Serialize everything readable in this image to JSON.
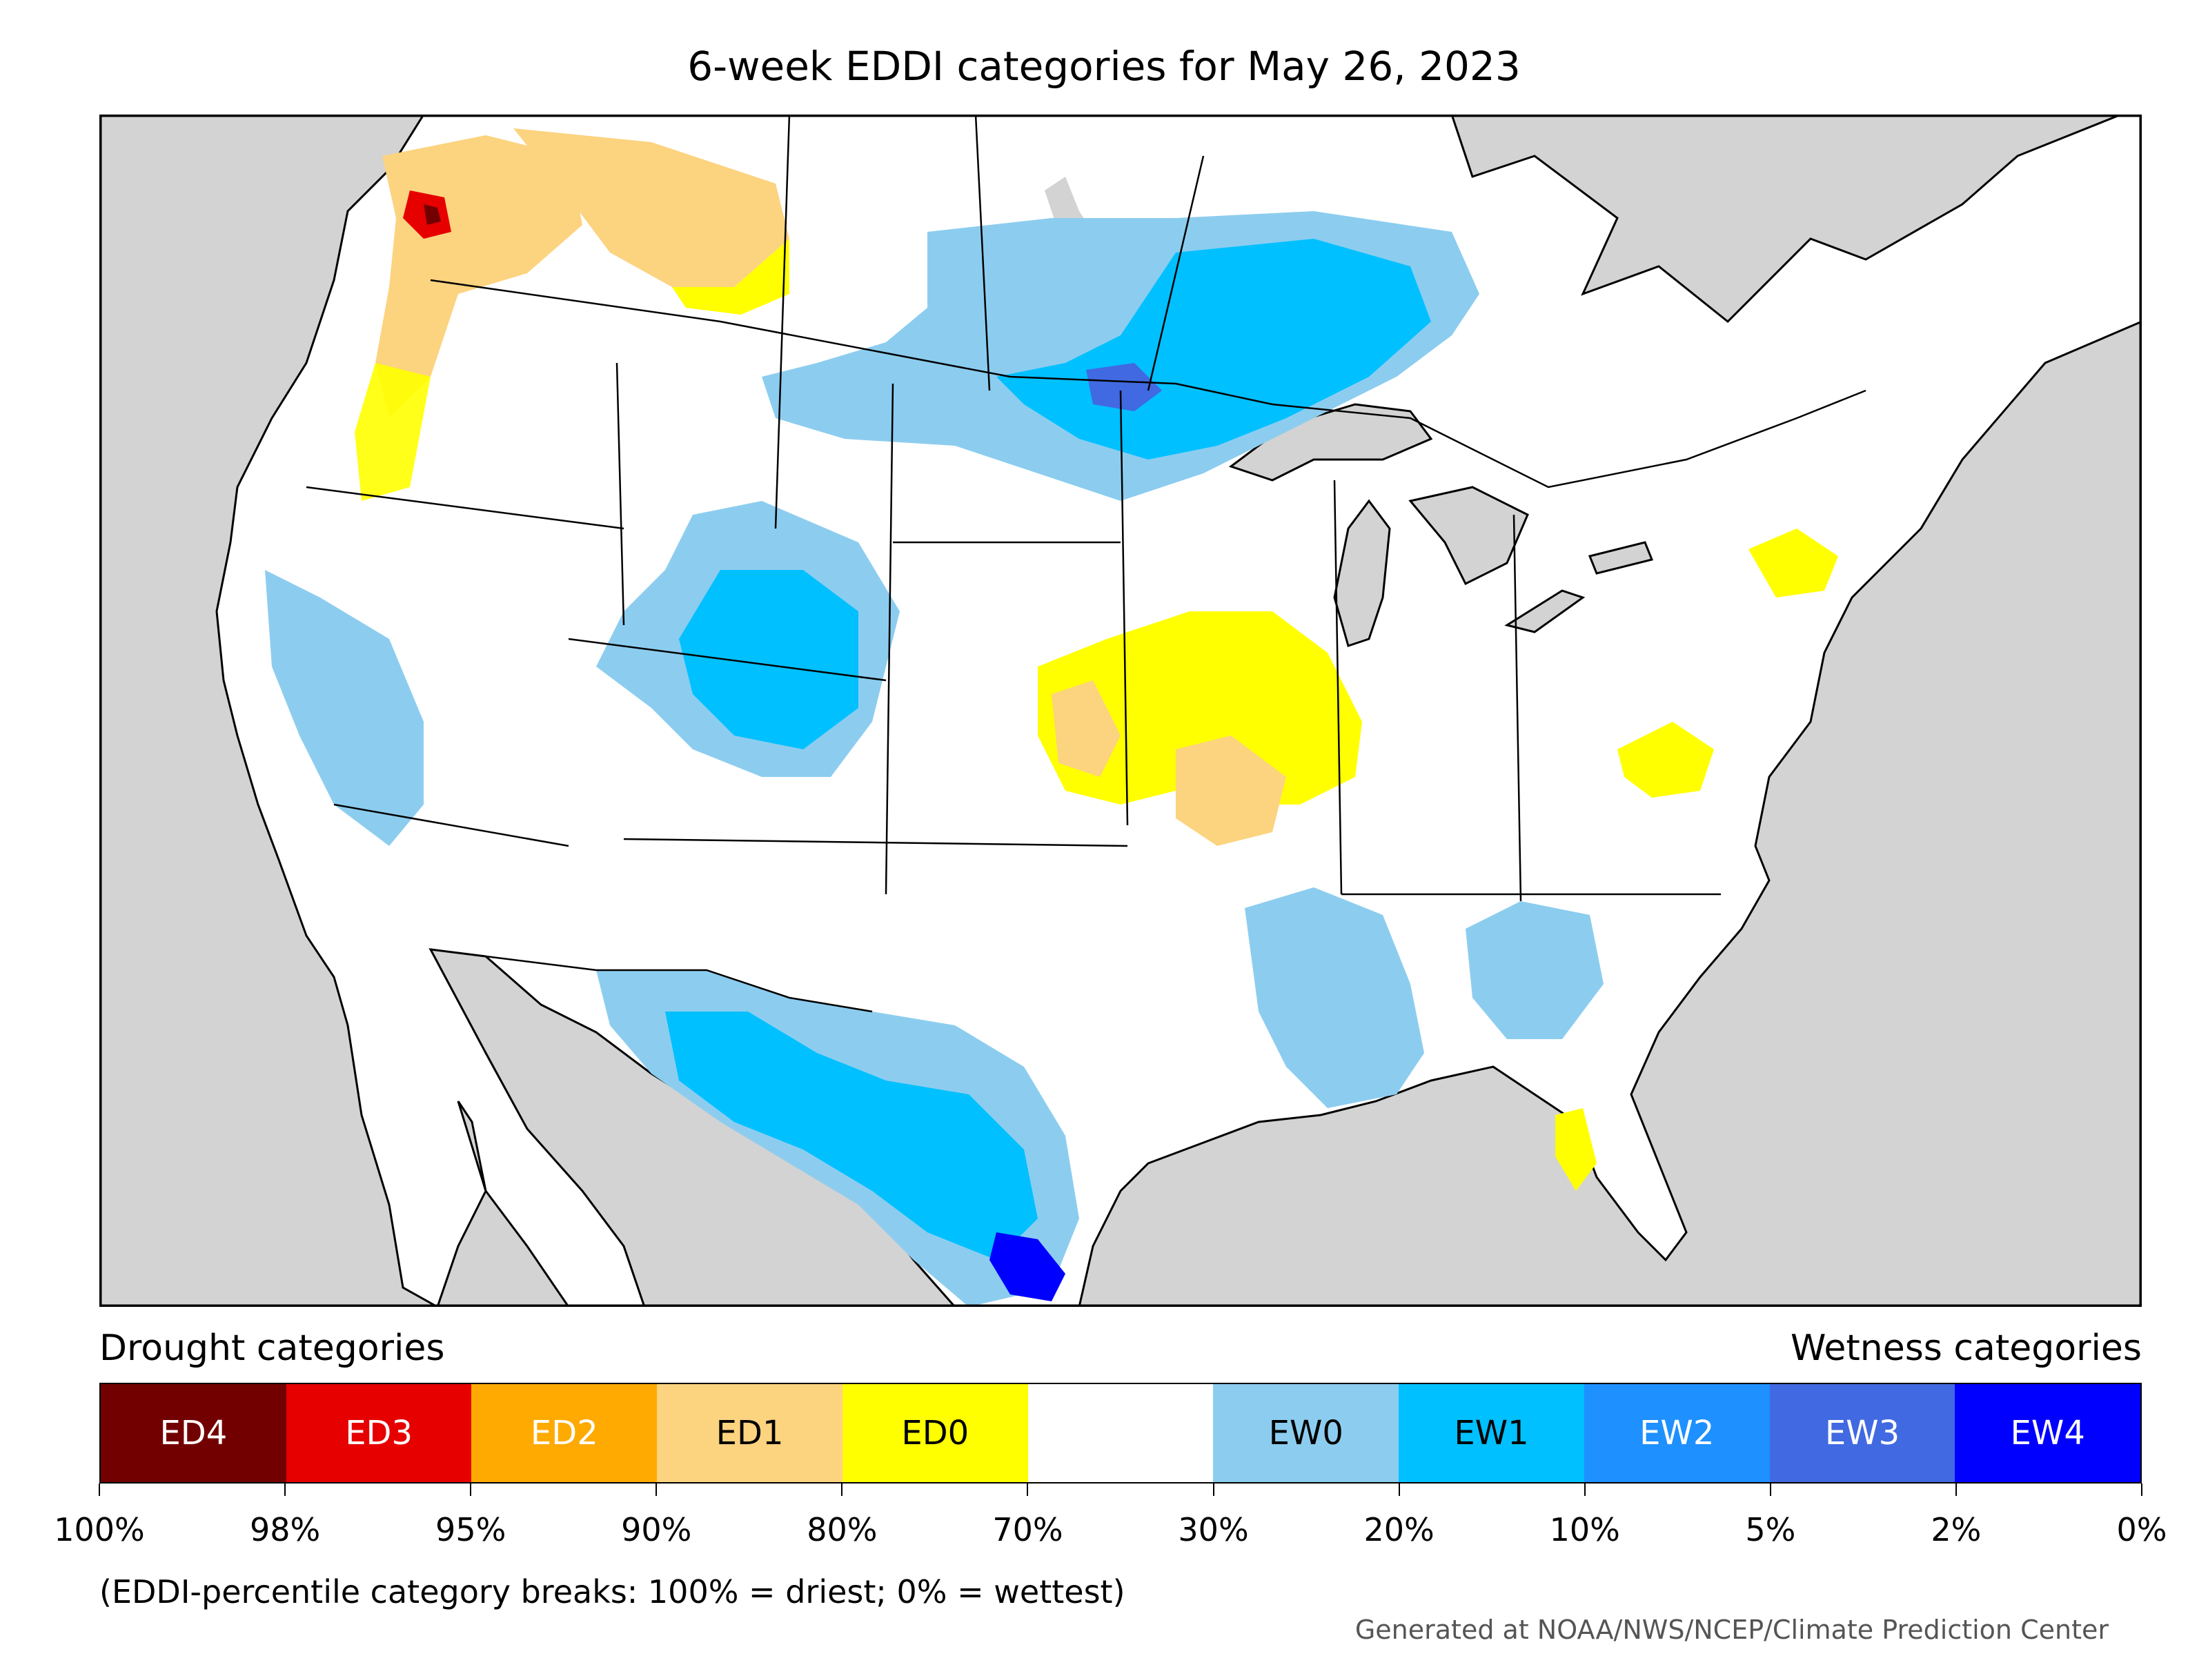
{
  "title": "6-week EDDI categories for May 26, 2023",
  "legend": {
    "drought_heading": "Drought categories",
    "wetness_heading": "Wetness categories",
    "categories": [
      {
        "label": "ED4",
        "color": "#730000",
        "text_color": "#ffffff"
      },
      {
        "label": "ED3",
        "color": "#e60000",
        "text_color": "#ffffff"
      },
      {
        "label": "ED2",
        "color": "#ffaa00",
        "text_color": "#ffffff"
      },
      {
        "label": "ED1",
        "color": "#fcd37f",
        "text_color": "#000000"
      },
      {
        "label": "ED0",
        "color": "#ffff00",
        "text_color": "#000000"
      },
      {
        "label": "",
        "color": "#ffffff",
        "text_color": "#000000"
      },
      {
        "label": "EW0",
        "color": "#8ccdef",
        "text_color": "#000000"
      },
      {
        "label": "EW1",
        "color": "#00c0ff",
        "text_color": "#000000"
      },
      {
        "label": "EW2",
        "color": "#1e90ff",
        "text_color": "#ffffff"
      },
      {
        "label": "EW3",
        "color": "#4169e1",
        "text_color": "#ffffff"
      },
      {
        "label": "EW4",
        "color": "#0000ff",
        "text_color": "#ffffff"
      }
    ],
    "breaks": [
      "100%",
      "98%",
      "95%",
      "90%",
      "80%",
      "70%",
      "30%",
      "20%",
      "10%",
      "5%",
      "2%",
      "0%"
    ]
  },
  "footnote": "(EDDI-percentile category breaks: 100% = driest; 0% = wettest)",
  "credit": "Generated at NOAA/NWS/NCEP/Climate Prediction Center",
  "map": {
    "ocean_color": "#d3d3d3",
    "land_color": "#ffffff",
    "regions": [
      {
        "name": "washington-drought",
        "category": "ED1"
      },
      {
        "name": "alberta-drought",
        "category": "ED1"
      },
      {
        "name": "midwest-drought",
        "category": "ED0"
      },
      {
        "name": "missouri-drought",
        "category": "ED1"
      },
      {
        "name": "virginia-drought",
        "category": "ED0"
      },
      {
        "name": "new-england-drought",
        "category": "ED0"
      },
      {
        "name": "florida-drought",
        "category": "ED0"
      },
      {
        "name": "prairie-wetness",
        "category": "EW1"
      },
      {
        "name": "colorado-wetness",
        "category": "EW1"
      },
      {
        "name": "texas-wetness",
        "category": "EW1"
      },
      {
        "name": "south-texas-wetness",
        "category": "EW4"
      },
      {
        "name": "california-wetness",
        "category": "EW0"
      },
      {
        "name": "southeast-wetness",
        "category": "EW0"
      }
    ]
  }
}
